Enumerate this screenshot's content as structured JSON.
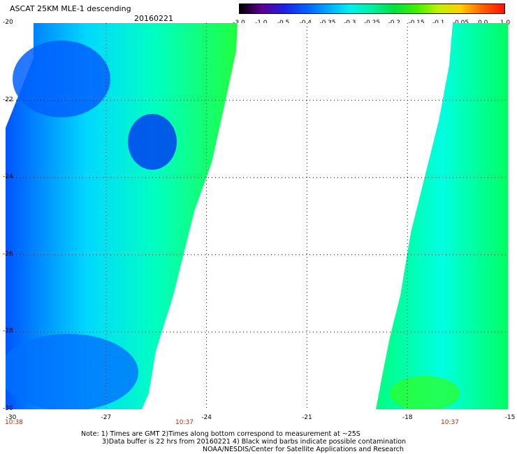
{
  "header": {
    "title": "ASCAT 25KM MLE-1 descending",
    "date": "20160221"
  },
  "colorbar": {
    "labels": [
      "-3.0",
      "-1.0",
      "-0.5",
      "-0.4",
      "-0.35",
      "-0.3",
      "-0.25",
      "-0.2",
      "-0.15",
      "-0.1",
      "-0.05",
      "0.0",
      "1.0"
    ],
    "colors": [
      "#000000",
      "#5b0090",
      "#2020e0",
      "#0060ff",
      "#00a8ff",
      "#00f0f0",
      "#00f0a0",
      "#00e040",
      "#40f000",
      "#c0f000",
      "#ffd000",
      "#ff6000",
      "#ff1000"
    ]
  },
  "map": {
    "lat_labels": [
      "-20",
      "-22",
      "-24",
      "-26",
      "-28",
      "-30"
    ],
    "lon_labels": [
      "-30",
      "-27",
      "-24",
      "-21",
      "-18",
      "-15"
    ],
    "time_labels": [
      "10:38",
      "10:37",
      "10:37"
    ],
    "swath_colors": [
      "#0050ff",
      "#0090ff",
      "#00ffff",
      "#00ffb0",
      "#00ff60",
      "#40ff00"
    ]
  },
  "notes": {
    "line1": "Note: 1) Times are GMT 2)Times along bottom correspond to measurement at ~25S",
    "line2": "3)Data buffer is 22 hrs from 20160221 4) Black wind barbs indicate possible contamination",
    "line3": "NOAA/NESDIS/Center for Satellite Applications and Research"
  }
}
